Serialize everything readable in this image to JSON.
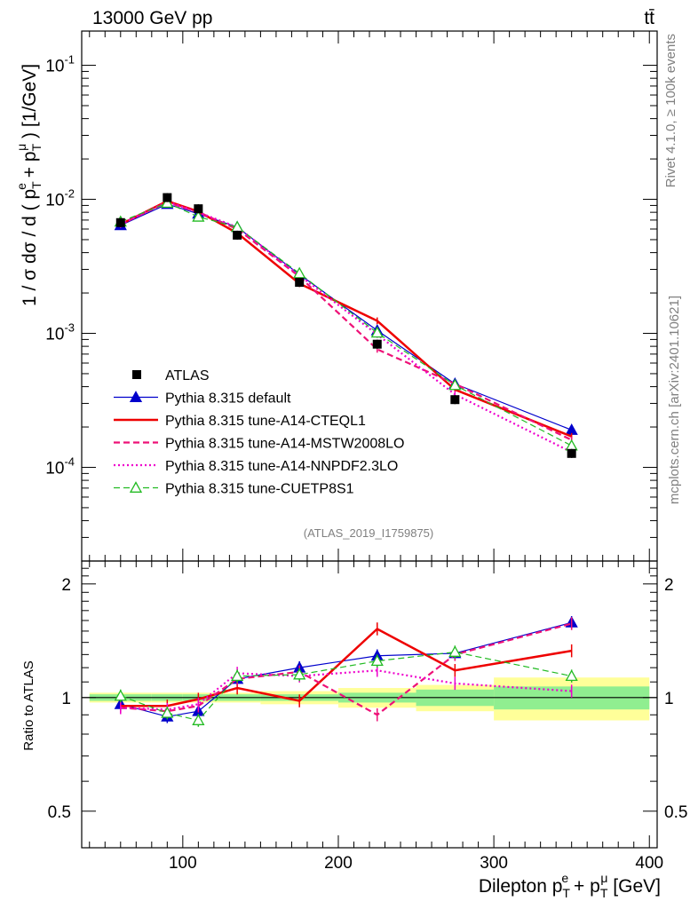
{
  "header": {
    "left": "13000 GeV pp",
    "right": "tt̄"
  },
  "side_labels": {
    "rivet": "Rivet 4.1.0, ≥ 100k events",
    "mcplots": "mcplots.cern.ch [arXiv:2401.10621]"
  },
  "analysis_id": "(ATLAS_2019_I1759875)",
  "y_axis_label": "1 / σ  dσ / d ( p_T^e + p_T^μ ) [1/GeV]",
  "ratio_axis_label": "Ratio to ATLAS",
  "x_axis_label": "Dilepton p_T^e + p_T^μ [GeV]",
  "colors": {
    "data": "#000000",
    "default": "#0000cc",
    "cteql1": "#ee0000",
    "mstw": "#ee1177",
    "nnpdf": "#ee00cc",
    "cuetp8s1": "#22bb22",
    "band_inner": "#90ee90",
    "band_outer": "#ffff99"
  },
  "chart_data": [
    {
      "type": "line",
      "name": "main",
      "scale": "log",
      "xlim": [
        35,
        405
      ],
      "ylim": [
        2e-05,
        0.18
      ],
      "x_ticks": [
        100,
        200,
        300,
        400
      ],
      "y_ticks": [
        {
          "value": 0.1,
          "label": "10^-1"
        },
        {
          "value": 0.01,
          "label": "10^-2"
        },
        {
          "value": 0.001,
          "label": "10^-3"
        },
        {
          "value": 0.0001,
          "label": "10^-4"
        }
      ],
      "x": [
        60,
        90,
        110,
        135,
        175,
        225,
        275,
        350
      ],
      "data": {
        "name": "ATLAS",
        "values": [
          0.0067,
          0.0103,
          0.0085,
          0.0054,
          0.0024,
          0.00083,
          0.00032,
          0.000127
        ]
      },
      "series": [
        {
          "name": "Pythia 8.315 default",
          "key": "default",
          "style": "solid",
          "marker": "triangle",
          "width": 1.2,
          "values": [
            0.0064,
            0.0092,
            0.0078,
            0.0062,
            0.00275,
            0.00105,
            0.00042,
            0.00019
          ]
        },
        {
          "name": "Pythia 8.315 tune-A14-CTEQL1",
          "key": "cteql1",
          "style": "solid",
          "marker": "none",
          "width": 2.5,
          "values": [
            0.0065,
            0.0097,
            0.0081,
            0.0056,
            0.00235,
            0.00124,
            0.00038,
            0.00017
          ]
        },
        {
          "name": "Pythia 8.315 tune-A14-MSTW2008LO",
          "key": "mstw",
          "style": "dashed",
          "marker": "none",
          "width": 2.2,
          "values": [
            0.0065,
            0.0095,
            0.008,
            0.006,
            0.00265,
            0.00076,
            0.00042,
            0.00016
          ]
        },
        {
          "name": "Pythia 8.315 tune-A14-NNPDF2.3LO",
          "key": "nnpdf",
          "style": "dotted",
          "marker": "none",
          "width": 2.2,
          "values": [
            0.0065,
            0.0096,
            0.008,
            0.0062,
            0.0027,
            0.00098,
            0.00035,
            0.00013
          ]
        },
        {
          "name": "Pythia 8.315 tune-CUETP8S1",
          "key": "cuetp8s1",
          "style": "dashed",
          "marker": "open-triangle",
          "width": 1.2,
          "values": [
            0.0068,
            0.0094,
            0.0074,
            0.0062,
            0.0028,
            0.00101,
            0.00041,
            0.000145
          ]
        }
      ]
    },
    {
      "type": "line",
      "name": "ratio",
      "scale": "log",
      "xlim": [
        35,
        405
      ],
      "ylim": [
        0.4,
        2.3
      ],
      "y_ticks": [
        {
          "value": 2,
          "label": "2"
        },
        {
          "value": 1,
          "label": "1"
        },
        {
          "value": 0.5,
          "label": "0.5"
        }
      ],
      "x": [
        60,
        90,
        110,
        135,
        175,
        225,
        275,
        350
      ],
      "bands": {
        "edges": [
          40,
          80,
          100,
          120,
          150,
          200,
          250,
          300,
          400
        ],
        "inner": [
          0.02,
          0.02,
          0.02,
          0.02,
          0.02,
          0.03,
          0.05,
          0.07
        ],
        "outer": [
          0.03,
          0.03,
          0.03,
          0.03,
          0.04,
          0.06,
          0.08,
          0.13
        ]
      },
      "series": [
        {
          "name": "Pythia 8.315 default",
          "key": "default",
          "style": "solid",
          "marker": "triangle",
          "width": 1.2,
          "values": [
            0.96,
            0.89,
            0.92,
            1.12,
            1.2,
            1.29,
            1.31,
            1.58
          ]
        },
        {
          "name": "Pythia 8.315 tune-A14-CTEQL1",
          "key": "cteql1",
          "style": "solid",
          "marker": "none",
          "width": 2.5,
          "values": [
            0.95,
            0.95,
            0.99,
            1.06,
            0.98,
            1.52,
            1.18,
            1.33
          ]
        },
        {
          "name": "Pythia 8.315 tune-A14-MSTW2008LO",
          "key": "mstw",
          "style": "dashed",
          "marker": "none",
          "width": 2.2,
          "values": [
            0.94,
            0.92,
            0.95,
            1.12,
            1.17,
            0.9,
            1.3,
            1.57
          ]
        },
        {
          "name": "Pythia 8.315 tune-A14-NNPDF2.3LO",
          "key": "nnpdf",
          "style": "dotted",
          "marker": "none",
          "width": 2.2,
          "values": [
            0.94,
            0.93,
            0.96,
            1.16,
            1.14,
            1.18,
            1.09,
            1.04
          ]
        },
        {
          "name": "Pythia 8.315 tune-CUETP8S1",
          "key": "cuetp8s1",
          "style": "dashed",
          "marker": "open-triangle",
          "width": 1.2,
          "values": [
            1.01,
            0.91,
            0.87,
            1.14,
            1.15,
            1.25,
            1.32,
            1.14
          ]
        }
      ]
    }
  ]
}
